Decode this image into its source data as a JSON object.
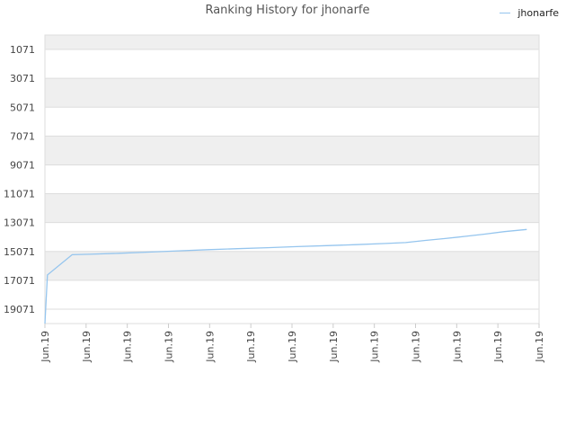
{
  "chart_data": {
    "type": "line",
    "title": "Ranking History for jhonarfe",
    "xlabel": "",
    "ylabel": "",
    "ylim": [
      20071,
      71
    ],
    "y_reversed": true,
    "y_ticks": [
      "1071",
      "3071",
      "5071",
      "7071",
      "9071",
      "11071",
      "13071",
      "15071",
      "17071",
      "19071"
    ],
    "x_ticks": [
      "Jun.19",
      "Jun.19",
      "Jun.19",
      "Jun.19",
      "Jun.19",
      "Jun.19",
      "Jun.19",
      "Jun.19",
      "Jun.19",
      "Jun.19",
      "Jun.19",
      "Jun.19",
      "Jun.19"
    ],
    "grid": true,
    "legend_position": "top-right",
    "series": [
      {
        "name": "jhonarfe",
        "color": "#95c5ee",
        "points": [
          [
            0,
            20071
          ],
          [
            0.005,
            16700
          ],
          [
            0.055,
            15300
          ],
          [
            0.09,
            15270
          ],
          [
            0.15,
            15200
          ],
          [
            0.21,
            15120
          ],
          [
            0.27,
            15030
          ],
          [
            0.33,
            14950
          ],
          [
            0.39,
            14880
          ],
          [
            0.45,
            14810
          ],
          [
            0.51,
            14740
          ],
          [
            0.57,
            14670
          ],
          [
            0.63,
            14600
          ],
          [
            0.69,
            14520
          ],
          [
            0.73,
            14460
          ],
          [
            0.77,
            14310
          ],
          [
            0.81,
            14180
          ],
          [
            0.85,
            14030
          ],
          [
            0.89,
            13870
          ],
          [
            0.93,
            13700
          ],
          [
            0.975,
            13550
          ]
        ]
      }
    ]
  }
}
